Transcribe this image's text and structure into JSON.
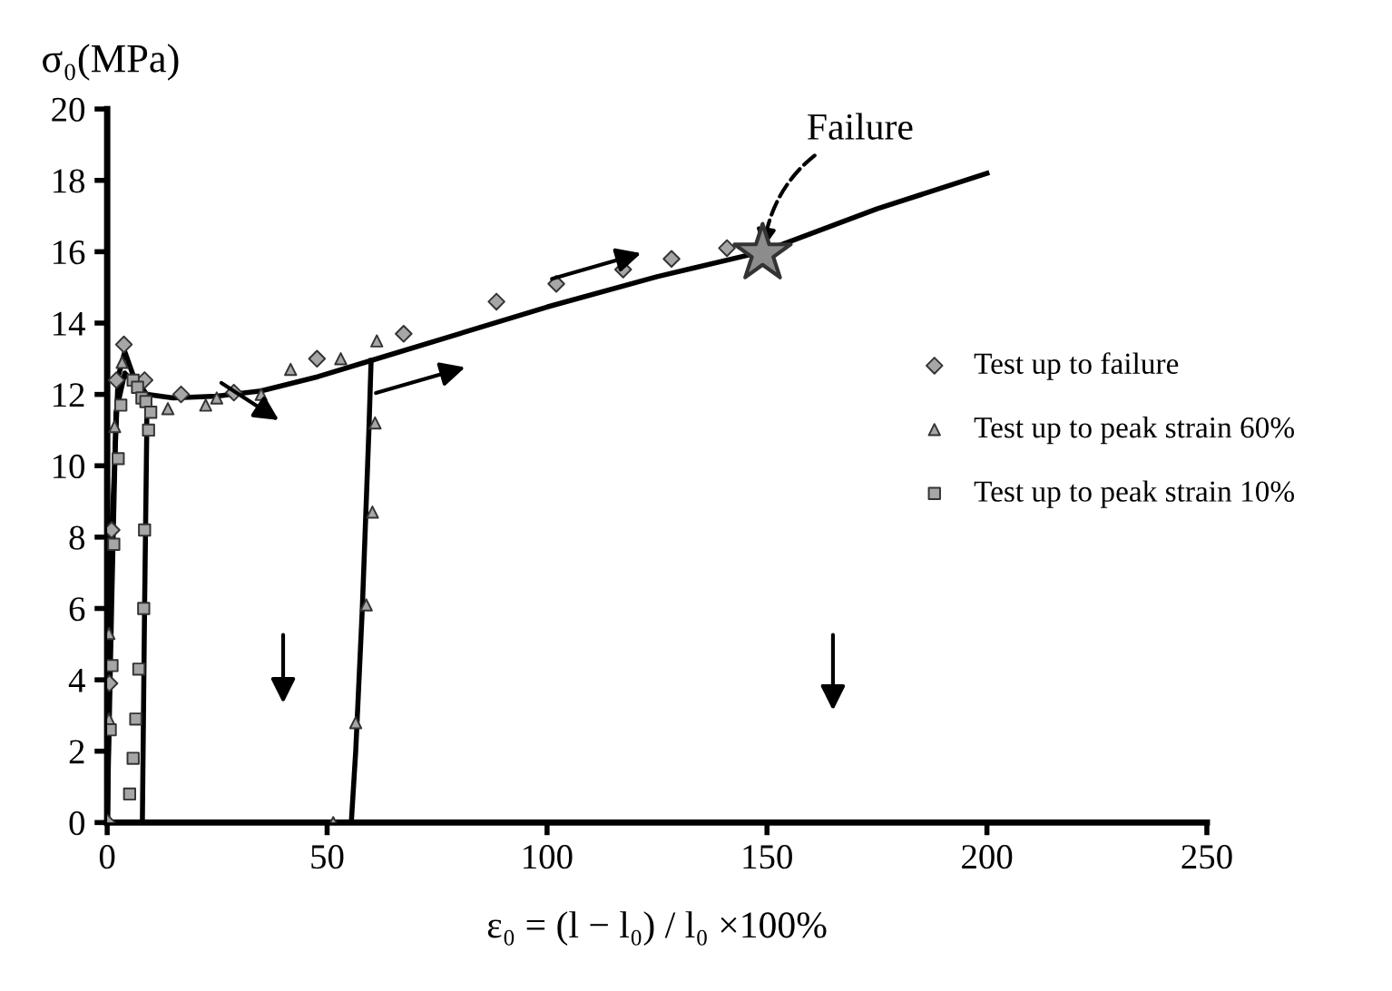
{
  "chart_data": {
    "type": "scatter",
    "xlabel": "ε₀ = (l − l₀) / l₀ ×100%",
    "ylabel": "σ₀(MPa)",
    "xlim": [
      0,
      250
    ],
    "ylim": [
      0,
      20
    ],
    "xticks": [
      0,
      50,
      100,
      150,
      200,
      250
    ],
    "yticks": [
      0,
      2,
      4,
      6,
      8,
      10,
      12,
      14,
      16,
      18,
      20
    ],
    "grid": false,
    "legend": "right",
    "annotations": [
      {
        "text": "Failure",
        "x": 149,
        "y": 15.95
      }
    ],
    "series": [
      {
        "type": "line",
        "color": "#000000",
        "marker": "none",
        "x": [
          0,
          1,
          2.5,
          4,
          6,
          9,
          15,
          25,
          35,
          48,
          60,
          80,
          100,
          125,
          149,
          175,
          200
        ],
        "values": [
          0,
          8,
          12.5,
          13.2,
          12.5,
          12,
          11.9,
          11.95,
          12.1,
          12.5,
          12.95,
          13.7,
          14.45,
          15.3,
          16.0,
          17.2,
          18.2
        ]
      },
      {
        "type": "line",
        "color": "#000000",
        "marker": "none",
        "x": [
          60,
          59.5,
          58,
          56.5,
          55.5
        ],
        "values": [
          12.95,
          11,
          6,
          2,
          0
        ]
      },
      {
        "type": "line",
        "color": "#000000",
        "marker": "none",
        "x": [
          0,
          1,
          2,
          4,
          7,
          9,
          9,
          8.5,
          8
        ],
        "values": [
          0,
          6,
          11.5,
          12.6,
          12.2,
          11.9,
          11,
          6,
          0
        ]
      },
      {
        "name": "Test up to failure",
        "color": "#a6a6a6",
        "marker": "diamond",
        "x": [
          0,
          0.5,
          1,
          2.1,
          3.8,
          8.5,
          16.8,
          28.8,
          47.7,
          67.4,
          88.5,
          102.1,
          117.3,
          128.3,
          140.9
        ],
        "values": [
          0,
          3.9,
          8.2,
          12.4,
          13.4,
          12.4,
          12.0,
          12.05,
          13.0,
          13.7,
          14.6,
          15.1,
          15.5,
          15.8,
          16.1
        ]
      },
      {
        "name": "Test up to peak strain 60%",
        "color": "#a6a6a6",
        "marker": "triangle",
        "x": [
          0.4,
          0.4,
          1.7,
          3.4,
          13.8,
          22.4,
          24.9,
          35,
          41.7,
          53.1,
          61.3,
          60.9,
          60.3,
          58.9,
          56.5,
          51.4
        ],
        "values": [
          2.9,
          5.3,
          11.1,
          12.9,
          11.6,
          11.7,
          11.9,
          12.0,
          12.7,
          13.0,
          13.5,
          11.2,
          8.7,
          6.1,
          2.8,
          0
        ]
      },
      {
        "name": "Test up to peak strain 10%",
        "color": "#a6a6a6",
        "marker": "square",
        "x": [
          0.7,
          1.1,
          1.5,
          2.5,
          3.1,
          5.9,
          6.9,
          7.9,
          8.8,
          9.9,
          9.4,
          8.5,
          8.3,
          7.2,
          6.5,
          5.9,
          5.1
        ],
        "values": [
          2.6,
          4.4,
          7.8,
          10.2,
          11.7,
          12.4,
          12.2,
          11.9,
          11.8,
          11.5,
          11.0,
          8.2,
          6.0,
          4.3,
          2.9,
          1.8,
          0.8
        ]
      },
      {
        "color": "#8c8c8c",
        "marker": "star",
        "x": [
          149
        ],
        "values": [
          15.95
        ]
      }
    ]
  }
}
